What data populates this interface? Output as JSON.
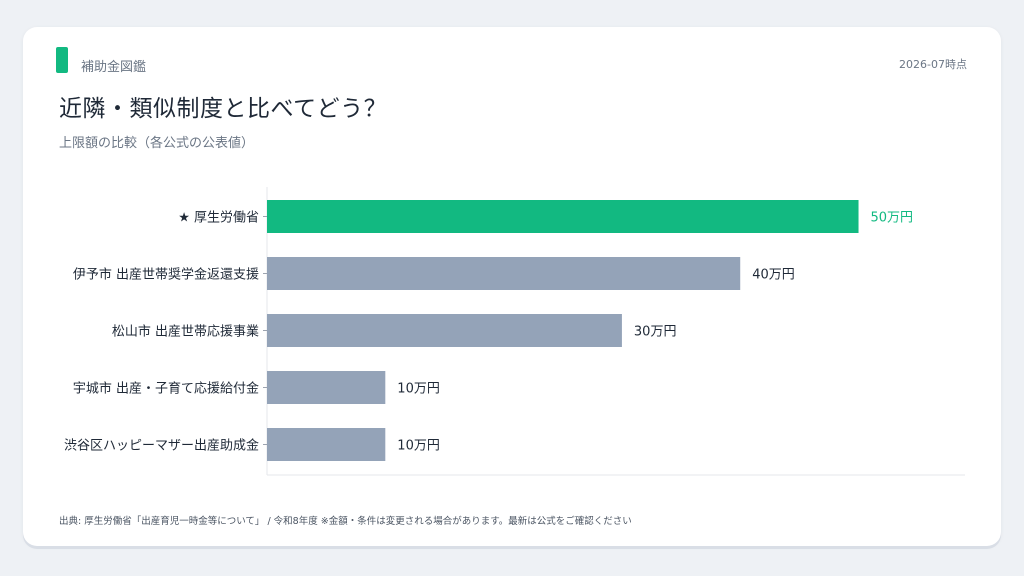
{
  "header": {
    "brand": "補助金図鑑",
    "date": "2026-07時点",
    "title": "近隣・類似制度と比べてどう？",
    "subtitle": "上限額の比較（各公式の公表値）"
  },
  "footer": {
    "source": "出典: 厚生労働省「出産育児一時金等について」 / 令和8年度 ※金額・条件は変更される場合があります。最新は公式をご確認ください"
  },
  "colors": {
    "accent": "#12b981",
    "bar": "#94a3b8",
    "label": "#1f2937"
  },
  "chart_data": {
    "type": "bar",
    "orientation": "horizontal",
    "categories": [
      "★ 厚生労働省",
      "伊予市 出産世帯奨学金返還支援",
      "松山市 出産世帯応援事業",
      "宇城市 出産・子育て応援給付金",
      "渋谷区ハッピーマザー出産助成金"
    ],
    "values": [
      50,
      40,
      30,
      10,
      10
    ],
    "value_labels": [
      "50万円",
      "40万円",
      "30万円",
      "10万円",
      "10万円"
    ],
    "unit": "万円",
    "highlight_index": 0,
    "xlim": [
      0,
      59
    ],
    "grid": false
  }
}
